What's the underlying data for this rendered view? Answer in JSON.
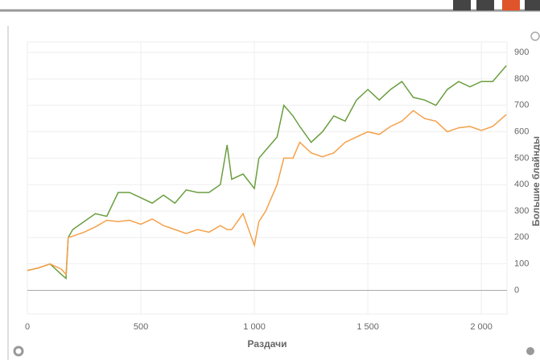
{
  "chart_data": {
    "type": "line",
    "x_label": "Раздачи",
    "y_label": "Большие блайнды",
    "x": [
      0,
      50,
      100,
      150,
      170,
      180,
      200,
      250,
      300,
      350,
      400,
      450,
      500,
      550,
      600,
      650,
      700,
      750,
      800,
      850,
      880,
      900,
      950,
      1000,
      1020,
      1050,
      1100,
      1130,
      1170,
      1200,
      1250,
      1300,
      1350,
      1400,
      1450,
      1500,
      1550,
      1600,
      1650,
      1700,
      1750,
      1800,
      1850,
      1900,
      1950,
      2000,
      2050,
      2110
    ],
    "series": [
      {
        "color": "#6a9e3f",
        "values": [
          75,
          85,
          100,
          60,
          45,
          200,
          230,
          260,
          290,
          280,
          370,
          370,
          350,
          330,
          360,
          330,
          380,
          370,
          370,
          400,
          550,
          420,
          440,
          385,
          500,
          530,
          580,
          700,
          660,
          620,
          560,
          600,
          660,
          640,
          720,
          760,
          720,
          760,
          790,
          730,
          720,
          700,
          760,
          790,
          770,
          790,
          790,
          850
        ]
      },
      {
        "color": "#f5a04a",
        "values": [
          75,
          85,
          100,
          80,
          60,
          200,
          205,
          220,
          240,
          265,
          260,
          265,
          250,
          270,
          245,
          230,
          215,
          230,
          220,
          245,
          230,
          230,
          290,
          170,
          260,
          300,
          400,
          500,
          500,
          560,
          520,
          505,
          520,
          560,
          580,
          600,
          590,
          620,
          640,
          680,
          650,
          640,
          600,
          615,
          620,
          605,
          620,
          665
        ]
      }
    ],
    "xlim": [
      0,
      2113
    ],
    "ylim": [
      -90,
      940
    ],
    "xticks": [
      0,
      500,
      {
        "value": 1000,
        "label": "1 000"
      },
      {
        "value": 1500,
        "label": "1 500"
      },
      {
        "value": 2000,
        "label": "2 000"
      }
    ],
    "yticks": [
      0,
      100,
      200,
      300,
      400,
      500,
      600,
      700,
      800,
      900
    ],
    "grid": true
  }
}
